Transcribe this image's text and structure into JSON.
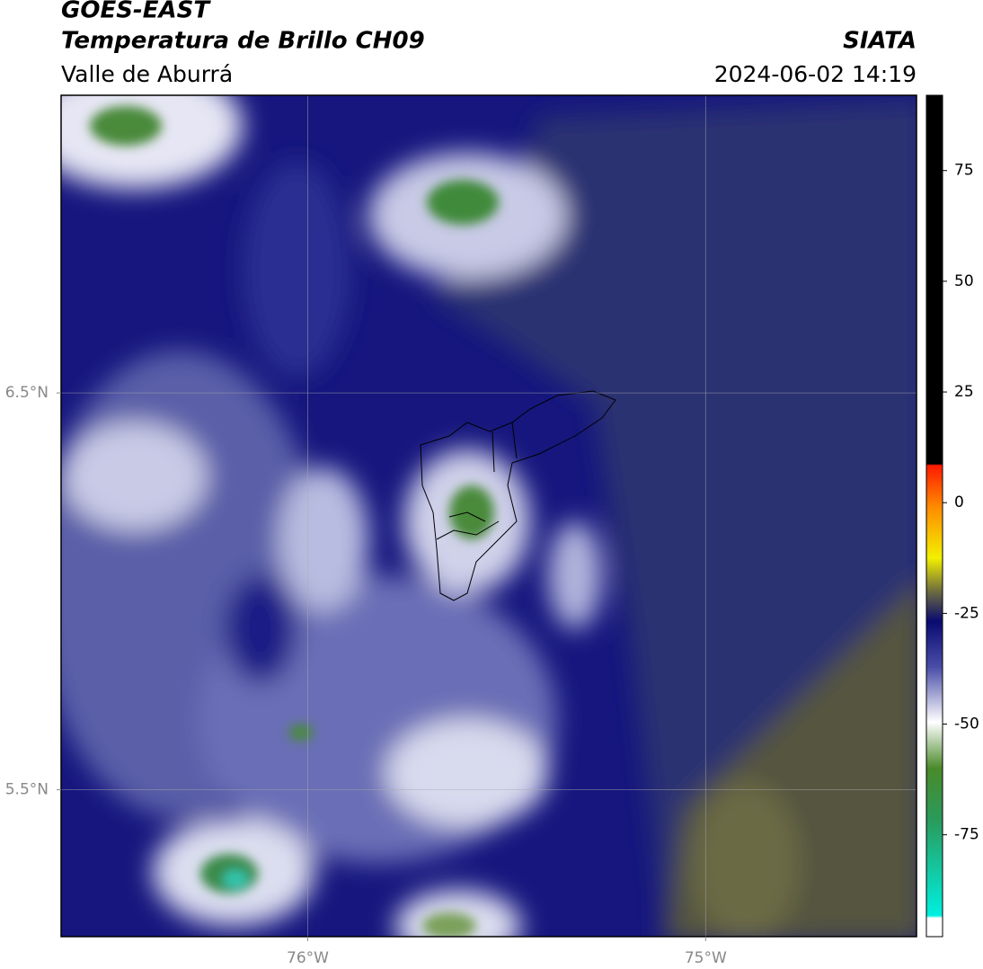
{
  "header": {
    "title": "GOES-EAST",
    "product": "Temperatura de Brillo CH09",
    "region": "Valle de Aburrá",
    "source": "SIATA",
    "datetime": "2024-06-02 14:19"
  },
  "map": {
    "lonlim": [
      -76.62,
      -74.47
    ],
    "latlim": [
      5.13,
      7.25
    ],
    "grid": true,
    "lonticks": [
      {
        "value": -76,
        "label": "76°W"
      },
      {
        "value": -75,
        "label": "75°W"
      }
    ],
    "latticks": [
      {
        "value": 6.5,
        "label": "6.5°N"
      },
      {
        "value": 5.5,
        "label": "5.5°N"
      }
    ]
  },
  "colorbar": {
    "lim": [
      -98,
      92
    ],
    "ticks": [
      75,
      50,
      25,
      0,
      -25,
      -50,
      -75
    ]
  }
}
